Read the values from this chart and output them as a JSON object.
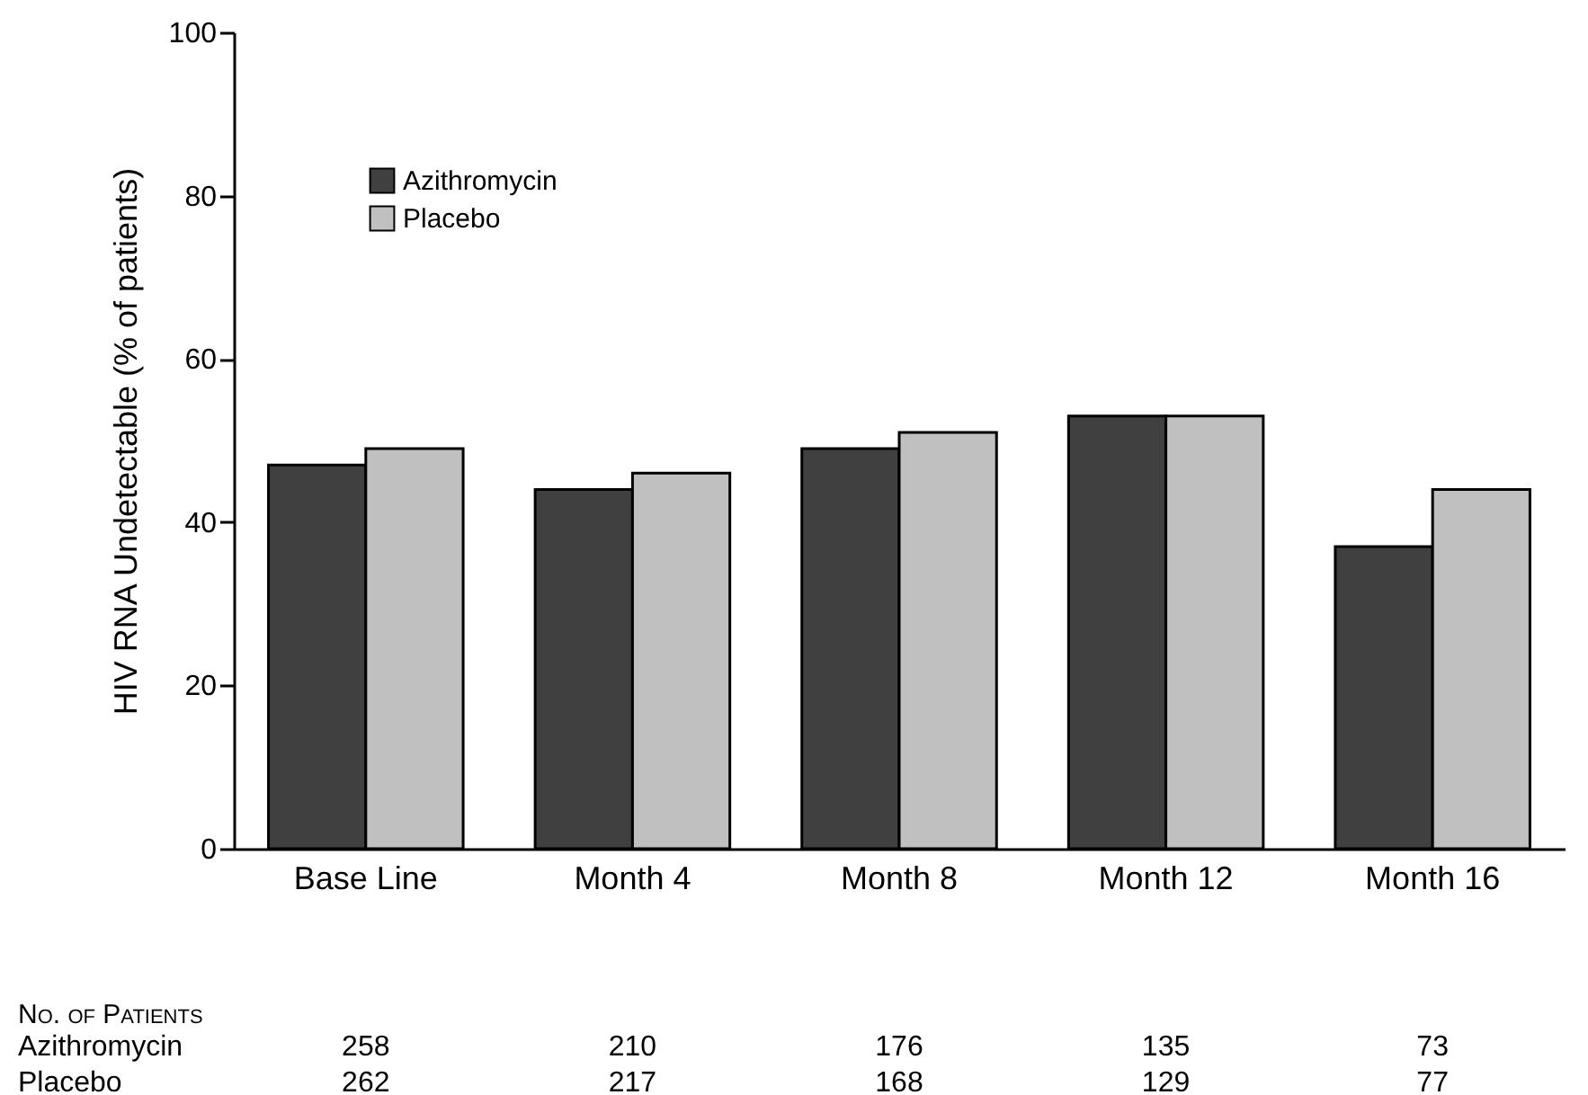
{
  "chart_data": {
    "type": "bar",
    "ylabel": "HIV RNA Undetectable (% of patients)",
    "categories": [
      "Base Line",
      "Month 4",
      "Month 8",
      "Month 12",
      "Month 16"
    ],
    "series": [
      {
        "name": "Azithromycin",
        "color": "#404040",
        "values": [
          47,
          44,
          49,
          53,
          37
        ]
      },
      {
        "name": "Placebo",
        "color": "#c0c0c0",
        "values": [
          49,
          46,
          51,
          53,
          44
        ]
      }
    ],
    "ylim": [
      0,
      100
    ],
    "yticks": [
      0,
      20,
      40,
      60,
      80,
      100
    ],
    "grid": false,
    "legend": "top left",
    "annotations": [
      "No. of Patients",
      "Azithromycin",
      "258",
      "210",
      "176",
      "135",
      "73",
      "Placebo",
      "262",
      "217",
      "168",
      "129",
      "77"
    ]
  }
}
